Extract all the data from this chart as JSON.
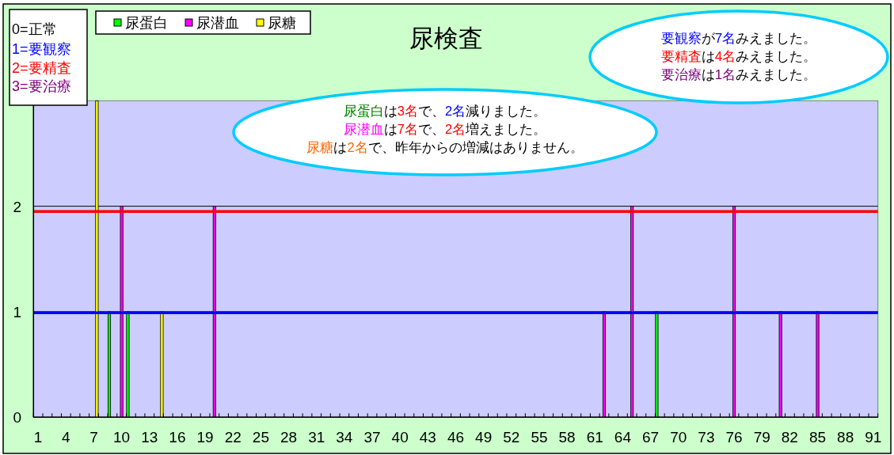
{
  "chart_data": {
    "type": "bar",
    "title": "尿検査",
    "categories": [
      "1",
      null,
      null,
      "4",
      null,
      null,
      "7",
      null,
      null,
      "10",
      null,
      null,
      "13",
      null,
      null,
      "16",
      null,
      null,
      "19",
      null,
      null,
      "22",
      null,
      null,
      "25",
      null,
      null,
      "28",
      null,
      null,
      "31",
      null,
      null,
      "34",
      null,
      null,
      "37",
      null,
      null,
      "40",
      null,
      null,
      "43",
      null,
      null,
      "46",
      null,
      null,
      "49",
      null,
      null,
      "52",
      null,
      null,
      "55",
      null,
      null,
      "58",
      null,
      null,
      "61",
      null,
      null,
      "64",
      null,
      null,
      "67",
      null,
      null,
      "70",
      null,
      null,
      "73",
      null,
      null,
      "76",
      null,
      null,
      "79",
      null,
      null,
      "82",
      null,
      null,
      "85",
      null,
      null,
      "88",
      null,
      null,
      "91"
    ],
    "series": [
      {
        "name": "尿蛋白",
        "color": "#00ff00",
        "values": [
          0,
          0,
          0,
          0,
          0,
          0,
          0,
          0,
          1,
          0,
          1,
          0,
          0,
          0,
          0,
          0,
          0,
          0,
          0,
          0,
          0,
          0,
          0,
          0,
          0,
          0,
          0,
          0,
          0,
          0,
          0,
          0,
          0,
          0,
          0,
          0,
          0,
          0,
          0,
          0,
          0,
          0,
          0,
          0,
          0,
          0,
          0,
          0,
          0,
          0,
          0,
          0,
          0,
          0,
          0,
          0,
          0,
          0,
          0,
          0,
          0,
          0,
          0,
          0,
          0,
          0,
          0,
          1,
          0,
          0,
          0,
          0,
          0,
          0,
          0,
          0,
          0,
          0,
          0,
          0,
          0,
          0,
          0,
          0,
          0,
          0,
          0,
          0,
          0,
          0,
          0
        ]
      },
      {
        "name": "尿潜血",
        "color": "#ff00ff",
        "values": [
          0,
          0,
          0,
          0,
          0,
          0,
          0,
          0,
          0,
          2,
          0,
          0,
          0,
          0,
          0,
          0,
          0,
          0,
          0,
          2,
          0,
          0,
          0,
          0,
          0,
          0,
          0,
          0,
          0,
          0,
          0,
          0,
          0,
          0,
          0,
          0,
          0,
          0,
          0,
          0,
          0,
          0,
          0,
          0,
          0,
          0,
          0,
          0,
          0,
          0,
          0,
          0,
          0,
          0,
          0,
          0,
          0,
          0,
          0,
          0,
          0,
          1,
          0,
          0,
          2,
          0,
          0,
          0,
          0,
          0,
          0,
          0,
          0,
          0,
          0,
          2,
          0,
          0,
          0,
          0,
          1,
          0,
          0,
          0,
          1,
          0,
          0,
          0,
          0,
          0,
          0
        ]
      },
      {
        "name": "尿糖",
        "color": "#ffff00",
        "values": [
          0,
          0,
          0,
          0,
          0,
          0,
          3,
          0,
          0,
          0,
          0,
          0,
          0,
          1,
          0,
          0,
          0,
          0,
          0,
          0,
          0,
          0,
          0,
          0,
          0,
          0,
          0,
          0,
          0,
          0,
          0,
          0,
          0,
          0,
          0,
          0,
          0,
          0,
          0,
          0,
          0,
          0,
          0,
          0,
          0,
          0,
          0,
          0,
          0,
          0,
          0,
          0,
          0,
          0,
          0,
          0,
          0,
          0,
          0,
          0,
          0,
          0,
          0,
          0,
          0,
          0,
          0,
          0,
          0,
          0,
          0,
          0,
          0,
          0,
          0,
          0,
          0,
          0,
          0,
          0,
          0,
          0,
          0,
          0,
          0,
          0,
          0,
          0,
          0,
          0,
          0
        ]
      }
    ],
    "ylim": [
      0,
      3
    ],
    "yticks": [
      0,
      1,
      2
    ],
    "grid": "y",
    "legend": "top left",
    "ref_lines": [
      {
        "axis": "y",
        "value": 1.95,
        "color": "#ff0000"
      },
      {
        "axis": "y",
        "value": 0.99,
        "color": "#0000ff"
      }
    ],
    "annotations": [
      "0=正常",
      "1=要観察",
      "2=要精査",
      "3=要治療",
      "要観察が7名みえました。",
      "要精査は4名みえました。",
      "要治療は1名みえました。",
      "尿蛋白は3名で、2名減りました。",
      "尿潜血は7名で、2名増えました。",
      "尿糖は2名で、昨年からの増減はありません。"
    ]
  }
}
